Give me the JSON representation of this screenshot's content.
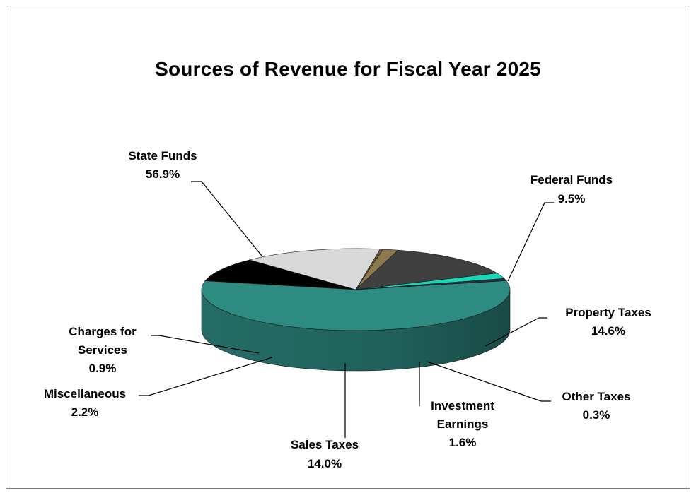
{
  "chart_data": {
    "type": "pie",
    "title": "Sources of Revenue for Fiscal Year 2025",
    "slices": [
      {
        "name": "State Funds",
        "value": 56.9,
        "label": "56.9%",
        "color": "#2e8b82"
      },
      {
        "name": "Federal Funds",
        "value": 9.5,
        "label": "9.5%",
        "color": "#000000"
      },
      {
        "name": "Property Taxes",
        "value": 14.6,
        "label": "14.6%",
        "color": "#d9d9d9"
      },
      {
        "name": "Other Taxes",
        "value": 0.3,
        "label": "0.3%",
        "color": "#6b5a3a"
      },
      {
        "name": "Investment Earnings",
        "value": 1.6,
        "label": "1.6%",
        "color": "#8c7a4f"
      },
      {
        "name": "Sales Taxes",
        "value": 14.0,
        "label": "14.0%",
        "color": "#404040"
      },
      {
        "name": "Miscellaneous",
        "value": 2.2,
        "label": "2.2%",
        "color": "#19d6b4"
      },
      {
        "name": "Charges for Services",
        "value": 0.9,
        "label": "0.9%",
        "color": "#2a2f45"
      }
    ]
  }
}
